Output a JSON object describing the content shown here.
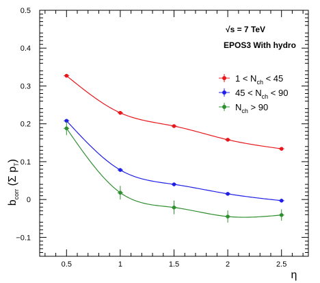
{
  "chart_data": {
    "type": "line",
    "title": "",
    "xlabel": "η",
    "ylabel_main": "b",
    "ylabel_sub": "corr",
    "ylabel_mid": " (Σ p",
    "ylabel_sub2": "T",
    "ylabel_end": ")",
    "xlim": [
      0.25,
      2.75
    ],
    "ylim": [
      -0.15,
      0.5
    ],
    "x_ticks": [
      0.5,
      1,
      1.5,
      2,
      2.5
    ],
    "x_tick_labels": [
      "0.5",
      "1",
      "1.5",
      "2",
      "2.5"
    ],
    "y_ticks": [
      -0.1,
      0,
      0.1,
      0.2,
      0.3,
      0.4,
      0.5
    ],
    "y_tick_labels": [
      "−0.1",
      "0",
      "0.1",
      "0.2",
      "0.3",
      "0.4",
      "0.5"
    ],
    "grid": false,
    "legend_position": "top-right",
    "annotations": [
      "√s = 7 TeV",
      "EPOS3 With hydro"
    ],
    "series": [
      {
        "name": "1 < N_ch < 45",
        "legend_main1": "1 < N",
        "legend_sub": "ch",
        "legend_main2": " < 45",
        "color": "#e8171c",
        "x": [
          0.5,
          1,
          1.5,
          2,
          2.5
        ],
        "values": [
          0.327,
          0.229,
          0.194,
          0.158,
          0.134
        ],
        "errors": [
          0.002,
          0.002,
          0.002,
          0.002,
          0.002
        ]
      },
      {
        "name": "45 < N_ch < 90",
        "legend_main1": "45 < N",
        "legend_sub": "ch",
        "legend_main2": " < 90",
        "color": "#1f1fe8",
        "x": [
          0.5,
          1,
          1.5,
          2,
          2.5
        ],
        "values": [
          0.208,
          0.078,
          0.04,
          0.015,
          -0.003
        ],
        "errors": [
          0.003,
          0.003,
          0.003,
          0.003,
          0.003
        ]
      },
      {
        "name": "N_ch > 90",
        "legend_main1": "N",
        "legend_sub": "ch",
        "legend_main2": " > 90",
        "color": "#2f8f2f",
        "x": [
          0.5,
          1,
          1.5,
          2,
          2.5
        ],
        "values": [
          0.188,
          0.018,
          -0.021,
          -0.045,
          -0.041
        ],
        "errors": [
          0.018,
          0.018,
          0.018,
          0.016,
          0.015
        ]
      }
    ]
  }
}
